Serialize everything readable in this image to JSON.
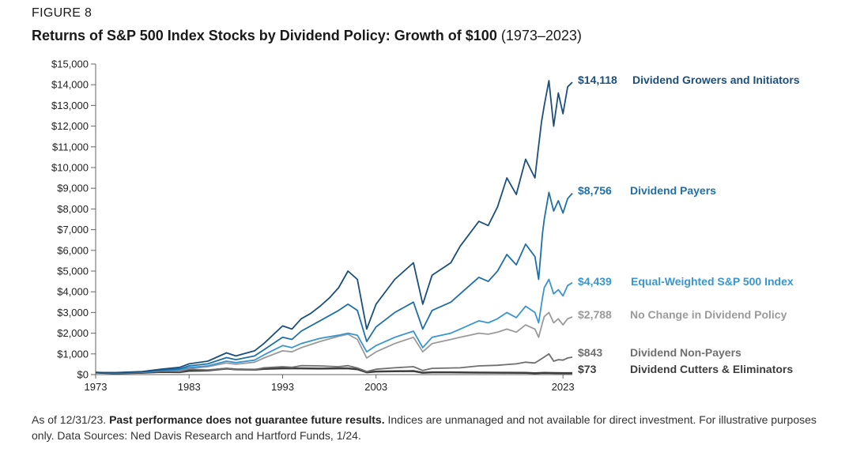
{
  "header": {
    "figure_label": "FIGURE 8",
    "title_bold": "Returns of S&P 500 Index Stocks by Dividend Policy: Growth of $100",
    "title_range": "(1973–2023)"
  },
  "footnote": {
    "lead": "As of 12/31/23.",
    "bold": "Past performance does not guarantee future results.",
    "rest": "Indices are unmanaged and not available for direct investment. For illustrative purposes only. Data Sources: Ned Davis Research and Hartford Funds, 1/24."
  },
  "colors": {
    "growers": "#1b4f7c",
    "payers": "#1f6fa8",
    "equal_weighted": "#3a95cf",
    "no_change": "#9a9a9a",
    "non_payers": "#6f6f6f",
    "cutters": "#3d3d3d"
  },
  "chart_data": {
    "type": "line",
    "title": "Returns of S&P 500 Index Stocks by Dividend Policy: Growth of $100 (1973–2023)",
    "xlabel": "",
    "ylabel": "",
    "xlim": [
      1973,
      2024
    ],
    "ylim": [
      0,
      15000
    ],
    "x_ticks": [
      "1973",
      "1983",
      "1993",
      "2003",
      "2023"
    ],
    "y_ticks": [
      "$0",
      "$1,000",
      "$2,000",
      "$3,000",
      "$4,000",
      "$5,000",
      "$6,000",
      "$7,000",
      "$8,000",
      "$9,000",
      "$10,000",
      "$11,000",
      "$12,000",
      "$13,000",
      "$14,000",
      "$15,000"
    ],
    "grid": false,
    "legend": "right-end labels",
    "series": [
      {
        "name": "Dividend Growers and Initiators",
        "end_label": "$14,118",
        "color": "#1b4f7c",
        "points": [
          [
            1973,
            100
          ],
          [
            1975,
            95
          ],
          [
            1978,
            150
          ],
          [
            1980,
            260
          ],
          [
            1982,
            350
          ],
          [
            1983,
            520
          ],
          [
            1985,
            650
          ],
          [
            1987,
            1050
          ],
          [
            1988,
            900
          ],
          [
            1990,
            1150
          ],
          [
            1991,
            1500
          ],
          [
            1993,
            2350
          ],
          [
            1994,
            2200
          ],
          [
            1995,
            2700
          ],
          [
            1996,
            2950
          ],
          [
            1997,
            3300
          ],
          [
            1998,
            3700
          ],
          [
            1999,
            4200
          ],
          [
            2000,
            5000
          ],
          [
            2001,
            4600
          ],
          [
            2002,
            2200
          ],
          [
            2003,
            3400
          ],
          [
            2005,
            4600
          ],
          [
            2007,
            5400
          ],
          [
            2008,
            3400
          ],
          [
            2009,
            4800
          ],
          [
            2011,
            5400
          ],
          [
            2012,
            6200
          ],
          [
            2014,
            7400
          ],
          [
            2015,
            7200
          ],
          [
            2016,
            8100
          ],
          [
            2017,
            9500
          ],
          [
            2018,
            8700
          ],
          [
            2019,
            10400
          ],
          [
            2020,
            9500
          ],
          [
            2020.3,
            10700
          ],
          [
            2020.7,
            12200
          ],
          [
            2021,
            13000
          ],
          [
            2021.5,
            14200
          ],
          [
            2022,
            12000
          ],
          [
            2022.5,
            13600
          ],
          [
            2023,
            12600
          ],
          [
            2023.5,
            13900
          ],
          [
            2024,
            14118
          ]
        ]
      },
      {
        "name": "Dividend Payers",
        "end_label": "$8,756",
        "color": "#1f6fa8",
        "points": [
          [
            1973,
            100
          ],
          [
            1975,
            90
          ],
          [
            1978,
            130
          ],
          [
            1980,
            210
          ],
          [
            1982,
            280
          ],
          [
            1983,
            420
          ],
          [
            1985,
            520
          ],
          [
            1987,
            820
          ],
          [
            1988,
            720
          ],
          [
            1990,
            900
          ],
          [
            1991,
            1200
          ],
          [
            1993,
            1800
          ],
          [
            1994,
            1700
          ],
          [
            1995,
            2100
          ],
          [
            1997,
            2600
          ],
          [
            1999,
            3100
          ],
          [
            2000,
            3400
          ],
          [
            2001,
            3100
          ],
          [
            2002,
            1600
          ],
          [
            2003,
            2300
          ],
          [
            2005,
            3000
          ],
          [
            2007,
            3500
          ],
          [
            2008,
            2200
          ],
          [
            2009,
            3100
          ],
          [
            2011,
            3500
          ],
          [
            2012,
            3900
          ],
          [
            2014,
            4700
          ],
          [
            2015,
            4500
          ],
          [
            2016,
            5000
          ],
          [
            2017,
            5800
          ],
          [
            2018,
            5300
          ],
          [
            2019,
            6300
          ],
          [
            2020,
            5700
          ],
          [
            2020.4,
            4600
          ],
          [
            2020.8,
            6800
          ],
          [
            2021,
            7500
          ],
          [
            2021.5,
            8800
          ],
          [
            2022,
            7900
          ],
          [
            2022.5,
            8400
          ],
          [
            2023,
            7800
          ],
          [
            2023.5,
            8500
          ],
          [
            2024,
            8756
          ]
        ]
      },
      {
        "name": "Equal-Weighted S&P 500 Index",
        "end_label": "$4,439",
        "color": "#3a95cf",
        "points": [
          [
            1973,
            100
          ],
          [
            1975,
            85
          ],
          [
            1978,
            120
          ],
          [
            1980,
            190
          ],
          [
            1982,
            240
          ],
          [
            1983,
            340
          ],
          [
            1985,
            420
          ],
          [
            1987,
            650
          ],
          [
            1988,
            580
          ],
          [
            1990,
            700
          ],
          [
            1991,
            950
          ],
          [
            1993,
            1400
          ],
          [
            1994,
            1300
          ],
          [
            1995,
            1500
          ],
          [
            1997,
            1750
          ],
          [
            1999,
            1900
          ],
          [
            2000,
            2000
          ],
          [
            2001,
            1900
          ],
          [
            2002,
            1100
          ],
          [
            2003,
            1400
          ],
          [
            2005,
            1800
          ],
          [
            2007,
            2100
          ],
          [
            2008,
            1300
          ],
          [
            2009,
            1800
          ],
          [
            2011,
            2000
          ],
          [
            2012,
            2200
          ],
          [
            2014,
            2600
          ],
          [
            2015,
            2500
          ],
          [
            2016,
            2700
          ],
          [
            2017,
            3000
          ],
          [
            2018,
            2750
          ],
          [
            2019,
            3300
          ],
          [
            2020,
            3000
          ],
          [
            2020.4,
            2500
          ],
          [
            2020.8,
            3700
          ],
          [
            2021,
            4200
          ],
          [
            2021.5,
            4600
          ],
          [
            2022,
            3900
          ],
          [
            2022.5,
            4100
          ],
          [
            2023,
            3800
          ],
          [
            2023.5,
            4300
          ],
          [
            2024,
            4439
          ]
        ]
      },
      {
        "name": "No Change in Dividend Policy",
        "end_label": "$2,788",
        "color": "#9a9a9a",
        "points": [
          [
            1973,
            100
          ],
          [
            1975,
            85
          ],
          [
            1978,
            110
          ],
          [
            1980,
            180
          ],
          [
            1982,
            220
          ],
          [
            1983,
            300
          ],
          [
            1985,
            380
          ],
          [
            1987,
            560
          ],
          [
            1988,
            500
          ],
          [
            1990,
            600
          ],
          [
            1991,
            800
          ],
          [
            1993,
            1150
          ],
          [
            1994,
            1100
          ],
          [
            1995,
            1300
          ],
          [
            1997,
            1600
          ],
          [
            1999,
            1850
          ],
          [
            2000,
            1950
          ],
          [
            2001,
            1700
          ],
          [
            2002,
            800
          ],
          [
            2003,
            1100
          ],
          [
            2005,
            1500
          ],
          [
            2007,
            1800
          ],
          [
            2008,
            1100
          ],
          [
            2009,
            1500
          ],
          [
            2011,
            1700
          ],
          [
            2012,
            1800
          ],
          [
            2014,
            2000
          ],
          [
            2015,
            1950
          ],
          [
            2016,
            2050
          ],
          [
            2017,
            2200
          ],
          [
            2018,
            2050
          ],
          [
            2019,
            2400
          ],
          [
            2020,
            2200
          ],
          [
            2020.4,
            1800
          ],
          [
            2020.8,
            2500
          ],
          [
            2021,
            2800
          ],
          [
            2021.5,
            3000
          ],
          [
            2022,
            2500
          ],
          [
            2022.5,
            2700
          ],
          [
            2023,
            2400
          ],
          [
            2023.5,
            2700
          ],
          [
            2024,
            2788
          ]
        ]
      },
      {
        "name": "Dividend Non-Payers",
        "end_label": "$843",
        "color": "#6f6f6f",
        "points": [
          [
            1973,
            100
          ],
          [
            1975,
            70
          ],
          [
            1978,
            110
          ],
          [
            1980,
            170
          ],
          [
            1982,
            150
          ],
          [
            1983,
            260
          ],
          [
            1985,
            220
          ],
          [
            1987,
            300
          ],
          [
            1988,
            260
          ],
          [
            1990,
            240
          ],
          [
            1991,
            330
          ],
          [
            1993,
            380
          ],
          [
            1994,
            350
          ],
          [
            1995,
            430
          ],
          [
            1997,
            420
          ],
          [
            1999,
            380
          ],
          [
            2000,
            430
          ],
          [
            2001,
            320
          ],
          [
            2002,
            150
          ],
          [
            2003,
            260
          ],
          [
            2005,
            330
          ],
          [
            2007,
            380
          ],
          [
            2008,
            200
          ],
          [
            2009,
            300
          ],
          [
            2011,
            320
          ],
          [
            2012,
            330
          ],
          [
            2014,
            420
          ],
          [
            2016,
            450
          ],
          [
            2018,
            520
          ],
          [
            2019,
            600
          ],
          [
            2020,
            560
          ],
          [
            2021,
            850
          ],
          [
            2021.5,
            1000
          ],
          [
            2022,
            650
          ],
          [
            2022.5,
            720
          ],
          [
            2023,
            700
          ],
          [
            2023.5,
            800
          ],
          [
            2024,
            843
          ]
        ]
      },
      {
        "name": "Dividend Cutters & Eliminators",
        "end_label": "$73",
        "color": "#3d3d3d",
        "points": [
          [
            1973,
            100
          ],
          [
            1975,
            60
          ],
          [
            1978,
            90
          ],
          [
            1980,
            130
          ],
          [
            1982,
            120
          ],
          [
            1983,
            180
          ],
          [
            1985,
            200
          ],
          [
            1987,
            290
          ],
          [
            1988,
            250
          ],
          [
            1990,
            240
          ],
          [
            1991,
            280
          ],
          [
            1993,
            300
          ],
          [
            1995,
            300
          ],
          [
            1997,
            290
          ],
          [
            1999,
            300
          ],
          [
            2000,
            300
          ],
          [
            2001,
            260
          ],
          [
            2002,
            110
          ],
          [
            2003,
            150
          ],
          [
            2005,
            160
          ],
          [
            2007,
            170
          ],
          [
            2008,
            90
          ],
          [
            2009,
            110
          ],
          [
            2011,
            110
          ],
          [
            2013,
            100
          ],
          [
            2015,
            95
          ],
          [
            2017,
            90
          ],
          [
            2019,
            85
          ],
          [
            2020,
            70
          ],
          [
            2021,
            85
          ],
          [
            2022,
            75
          ],
          [
            2023,
            72
          ],
          [
            2024,
            73
          ]
        ]
      }
    ]
  }
}
